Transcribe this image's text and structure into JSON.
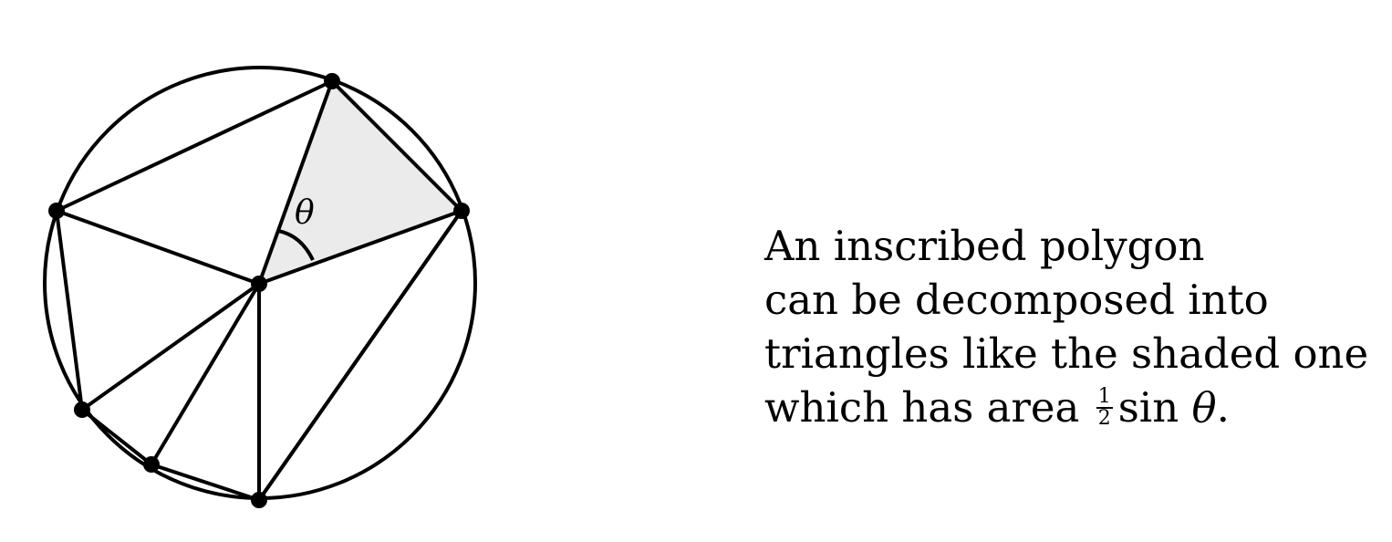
{
  "diagram": {
    "angle_label": "θ",
    "colors": {
      "stroke": "#000000",
      "shade": "#ebebeb",
      "background": "#ffffff"
    }
  },
  "caption": {
    "line1": "An inscribed polygon",
    "line2": "can be decomposed into",
    "line3": "triangles like the shaded one",
    "line4_prefix": "which has area",
    "fraction_numerator": "1",
    "fraction_denominator": "2",
    "line4_function": "sin",
    "line4_variable": "θ",
    "line4_suffix": "."
  }
}
